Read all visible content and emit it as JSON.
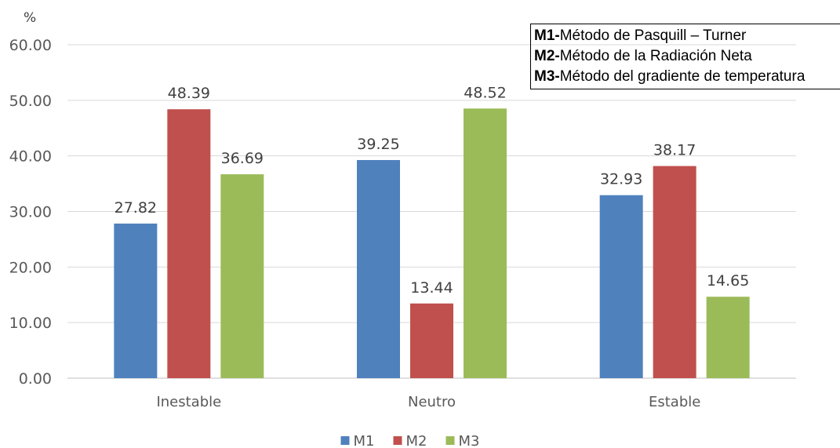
{
  "chart_data": {
    "type": "bar",
    "ylabel": "%",
    "categories": [
      "Inestable",
      "Neutro",
      "Estable"
    ],
    "series": [
      {
        "name": "M1",
        "color": "#4F81BD",
        "values": [
          27.82,
          39.25,
          32.93
        ]
      },
      {
        "name": "M2",
        "color": "#C0504D",
        "values": [
          48.39,
          13.44,
          38.17
        ]
      },
      {
        "name": "M3",
        "color": "#9BBB59",
        "values": [
          36.69,
          48.52,
          14.65
        ]
      }
    ],
    "ylim": [
      0,
      60
    ],
    "yticks": [
      "0.00",
      "10.00",
      "20.00",
      "30.00",
      "40.00",
      "50.00",
      "60.00"
    ],
    "grid": true,
    "legend_position": "bottom",
    "data_labels": true
  },
  "methods_box": {
    "items": [
      {
        "code": "M1-",
        "text": "Método de Pasquill – Turner"
      },
      {
        "code": "M2-",
        "text": "Método de la Radiación Neta"
      },
      {
        "code": "M3-",
        "text": "Método del gradiente de temperatura"
      }
    ]
  }
}
